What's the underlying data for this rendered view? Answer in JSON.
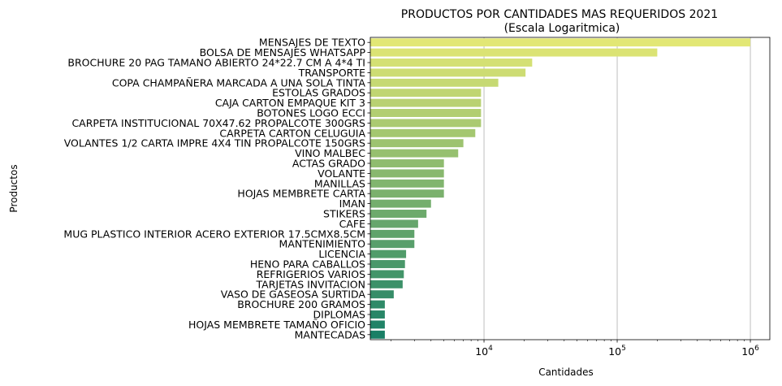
{
  "chart_data": {
    "type": "bar",
    "orientation": "horizontal",
    "title": "PRODUCTOS POR CANTIDADES MAS REQUERIDOS 2021",
    "subtitle": "(Escala Logaritmica)",
    "xlabel": "Cantidades",
    "ylabel": "Productos",
    "xscale": "log",
    "xlim": [
      1400,
      1400000
    ],
    "xticks": [
      {
        "value": 10000,
        "base": "10",
        "exp": "4"
      },
      {
        "value": 100000,
        "base": "10",
        "exp": "5"
      },
      {
        "value": 1000000,
        "base": "10",
        "exp": "6"
      }
    ],
    "grid": "x-major",
    "legend": "none",
    "colormap": "summer_r (yellow to green)",
    "color_start": "#e2e775",
    "color_end": "#1a7f66",
    "categories": [
      "MENSAJES DE TEXTO",
      "BOLSA DE MENSAJES WHATSAPP",
      "BROCHURE 20 PAG TAMANO ABIERTO 24*22.7 CM A 4*4 TI",
      "TRANSPORTE",
      "COPA CHAMPAÑERA MARCADA A UNA SOLA TINTA",
      "ESTOLAS GRADOS",
      "CAJA CARTON EMPAQUE KIT 3",
      "BOTONES LOGO ECCI",
      "CARPETA INSTITUCIONAL 70X47.62 PROPALCOTE 300GRS",
      "CARPETA CARTON CELUGUIA",
      "VOLANTES 1/2 CARTA IMPRE 4X4 TIN PROPALCOTE 150GRS",
      "VINO MALBEC",
      "ACTAS GRADO",
      "VOLANTE",
      "MANILLAS",
      "HOJAS MEMBRETE CARTA",
      "IMAN",
      "STIKERS",
      "CAFE",
      "MUG PLASTICO INTERIOR ACERO EXTERIOR 17.5CMX8.5CM",
      "MANTENIMIENTO",
      "LICENCIA",
      "HENO PARA CABALLOS",
      "REFRIGERIOS VARIOS",
      "TARJETAS INVITACION",
      "VASO DE GASEOSA SURTIDA",
      "BROCHURE 200 GRAMOS",
      "DIPLOMAS",
      "HOJAS MEMBRETE TAMAÑO OFICIO",
      "MANTECADAS"
    ],
    "values": [
      1000000,
      200000,
      23000,
      20500,
      12800,
      9500,
      9500,
      9500,
      9500,
      8600,
      7000,
      6400,
      5000,
      5000,
      5000,
      5000,
      4000,
      3700,
      3200,
      3000,
      3000,
      2600,
      2550,
      2500,
      2450,
      2100,
      1800,
      1800,
      1800,
      1800
    ]
  }
}
